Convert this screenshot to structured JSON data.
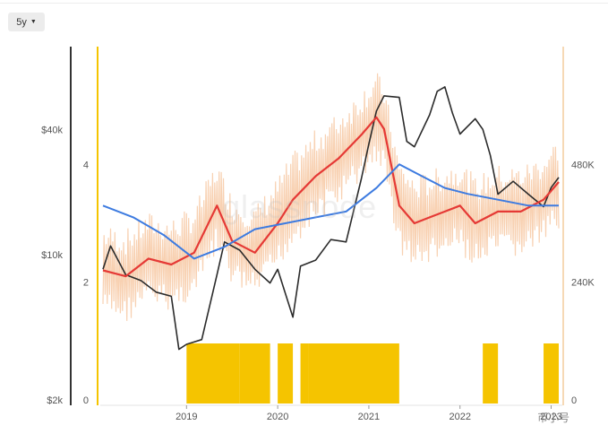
{
  "toolbar": {
    "range_label": "5y"
  },
  "watermark": "glassnode",
  "footer_mark": "币小号",
  "chart_data": {
    "type": "line",
    "x_ticks": [
      "2019",
      "2020",
      "2021",
      "2022",
      "2023"
    ],
    "x_range": [
      "2018-02",
      "2023-02"
    ],
    "axes": {
      "price_left": {
        "ticks": [
          "$40k",
          "$10k",
          "$2k"
        ],
        "values": [
          40000,
          10000,
          2000
        ],
        "scale": "log"
      },
      "ratio_left": {
        "ticks": [
          "4",
          "2",
          "0"
        ],
        "values": [
          4,
          2,
          0
        ],
        "range": [
          0,
          6
        ]
      },
      "count_right": {
        "ticks": [
          "480K",
          "240K",
          "0"
        ],
        "values": [
          480000,
          240000,
          0
        ],
        "range": [
          0,
          720000
        ]
      }
    },
    "colors": {
      "price": "#2b2b2b",
      "metric_raw": "#f7c9a4",
      "metric_ma": "#e53935",
      "metric_long_ma": "#3d7be0",
      "signal": "#f5c400",
      "axis_left": "#333333",
      "axis_mid": "#f5c400",
      "axis_right": "#f6d9b5"
    },
    "series": [
      {
        "axis": "price_left",
        "x": [
          "2018-02",
          "2018-03",
          "2018-05",
          "2018-07",
          "2018-09",
          "2018-11",
          "2018-12",
          "2019-01",
          "2019-03",
          "2019-05",
          "2019-06",
          "2019-08",
          "2019-10",
          "2019-12",
          "2020-01",
          "2020-03",
          "2020-04",
          "2020-06",
          "2020-08",
          "2020-10",
          "2020-12",
          "2021-01",
          "2021-02",
          "2021-03",
          "2021-05",
          "2021-06",
          "2021-07",
          "2021-09",
          "2021-10",
          "2021-11",
          "2021-12",
          "2022-01",
          "2022-03",
          "2022-04",
          "2022-05",
          "2022-06",
          "2022-08",
          "2022-10",
          "2022-12",
          "2023-01",
          "2023-02"
        ],
        "values": [
          8500,
          11000,
          8000,
          7500,
          6600,
          6300,
          3500,
          3700,
          3900,
          8000,
          11500,
          10500,
          8500,
          7300,
          8500,
          5000,
          8800,
          9400,
          11800,
          11500,
          23000,
          34000,
          49000,
          58000,
          57000,
          35000,
          33000,
          47000,
          61000,
          64000,
          48000,
          38000,
          45000,
          40000,
          30000,
          19500,
          22500,
          19500,
          17000,
          21000,
          23500
        ]
      },
      {
        "axis": "ratio_left",
        "x": [
          "2018-02",
          "2018-05",
          "2018-08",
          "2018-11",
          "2019-02",
          "2019-05",
          "2019-07",
          "2019-10",
          "2020-01",
          "2020-03",
          "2020-06",
          "2020-09",
          "2020-12",
          "2021-02",
          "2021-03",
          "2021-05",
          "2021-07",
          "2021-09",
          "2021-11",
          "2022-01",
          "2022-03",
          "2022-06",
          "2022-09",
          "2022-12",
          "2023-02"
        ],
        "values": [
          2.2,
          2.1,
          2.4,
          2.3,
          2.5,
          3.3,
          2.7,
          2.5,
          3.0,
          3.4,
          3.8,
          4.1,
          4.5,
          4.8,
          4.6,
          3.3,
          3.0,
          3.1,
          3.2,
          3.3,
          3.0,
          3.2,
          3.2,
          3.4,
          3.7
        ]
      },
      {
        "axis": "ratio_left",
        "x": [
          "2018-02",
          "2018-06",
          "2018-10",
          "2019-02",
          "2019-06",
          "2019-10",
          "2020-02",
          "2020-06",
          "2020-10",
          "2021-02",
          "2021-05",
          "2021-08",
          "2021-11",
          "2022-02",
          "2022-06",
          "2022-10",
          "2023-02"
        ],
        "values": [
          3.3,
          3.1,
          2.8,
          2.4,
          2.6,
          2.9,
          3.0,
          3.1,
          3.2,
          3.6,
          4.0,
          3.8,
          3.6,
          3.5,
          3.4,
          3.3,
          3.3
        ]
      }
    ],
    "signal_bands": [
      [
        "2019-01",
        "2019-08"
      ],
      [
        "2019-08",
        "2019-12"
      ],
      [
        "2020-01",
        "2020-03"
      ],
      [
        "2020-04",
        "2020-05"
      ],
      [
        "2020-05",
        "2021-05"
      ],
      [
        "2022-04",
        "2022-06"
      ],
      [
        "2022-12",
        "2023-02"
      ]
    ]
  }
}
